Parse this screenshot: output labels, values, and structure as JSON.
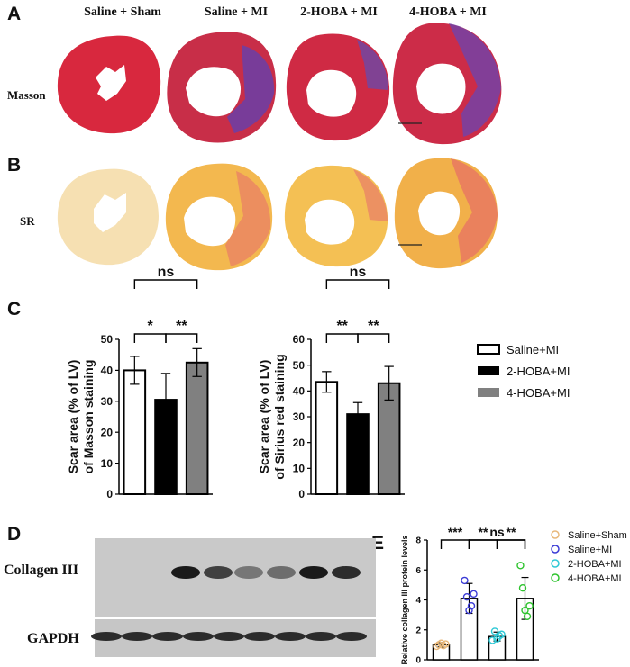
{
  "panels": {
    "A": "A",
    "B": "B",
    "C": "C",
    "D": "D",
    "E": "E"
  },
  "histology": {
    "columns": [
      "Saline + Sham",
      "Saline + MI",
      "2-HOBA + MI",
      "4-HOBA + MI"
    ],
    "row_masson": "Masson",
    "row_sr": "SR"
  },
  "chart_data": [
    {
      "type": "bar",
      "categories": [
        "Saline+MI",
        "2-HOBA+MI",
        "4-HOBA+MI"
      ],
      "values": [
        40,
        30.5,
        42.5
      ],
      "errors": [
        4.5,
        8.5,
        4.5
      ],
      "ylabel_lines": [
        "Scar area (% of LV)",
        "of Masson staining"
      ],
      "ylim": [
        0,
        50
      ],
      "yticks": [
        "0",
        "10",
        "20",
        "30",
        "40",
        "50"
      ],
      "colors": [
        "#ffffff",
        "#000000",
        "#808080"
      ],
      "significance": [
        {
          "label": "*",
          "pair": [
            0,
            1
          ]
        },
        {
          "label": "**",
          "pair": [
            1,
            2
          ]
        },
        {
          "label": "ns",
          "pair": [
            0,
            2
          ]
        }
      ]
    },
    {
      "type": "bar",
      "categories": [
        "Saline+MI",
        "2-HOBA+MI",
        "4-HOBA+MI"
      ],
      "values": [
        43.5,
        31,
        43
      ],
      "errors": [
        4,
        4.5,
        6.5
      ],
      "ylabel_lines": [
        "Scar area (% of LV)",
        "of Sirius red staining"
      ],
      "ylim": [
        0,
        60
      ],
      "yticks": [
        "0",
        "10",
        "20",
        "30",
        "40",
        "50",
        "60"
      ],
      "colors": [
        "#ffffff",
        "#000000",
        "#808080"
      ],
      "significance": [
        {
          "label": "**",
          "pair": [
            0,
            1
          ]
        },
        {
          "label": "**",
          "pair": [
            1,
            2
          ]
        },
        {
          "label": "ns",
          "pair": [
            0,
            2
          ]
        }
      ],
      "legend": [
        "Saline+MI",
        "2-HOBA+MI",
        "4-HOBA+MI"
      ]
    },
    {
      "type": "bar",
      "categories": [
        "Saline+Sham",
        "Saline+MI",
        "2-HOBA+MI",
        "4-HOBA+MI"
      ],
      "values": [
        1.0,
        4.1,
        1.55,
        4.1
      ],
      "errors": [
        0.15,
        1.0,
        0.3,
        1.4
      ],
      "points": [
        [
          0.9,
          1.0,
          1.1,
          0.95,
          1.05
        ],
        [
          5.3,
          4.2,
          3.3,
          3.6,
          4.4
        ],
        [
          1.3,
          1.9,
          1.4,
          1.6,
          1.7
        ],
        [
          6.3,
          4.8,
          3.3,
          2.9,
          3.6
        ]
      ],
      "point_colors": [
        "#e8b87a",
        "#3b3bd6",
        "#2fc9d6",
        "#2ec42e"
      ],
      "ylabel": "Relative collagen III protein levels",
      "ylim": [
        0,
        8
      ],
      "yticks": [
        "0",
        "2",
        "4",
        "6",
        "8"
      ],
      "significance": [
        {
          "label": "***",
          "pair": [
            0,
            1
          ]
        },
        {
          "label": "**",
          "pair": [
            1,
            2
          ]
        },
        {
          "label": "**",
          "pair": [
            2,
            3
          ]
        },
        {
          "label": "ns",
          "pair": [
            1,
            3
          ]
        }
      ],
      "legend": [
        "Saline+Sham",
        "Saline+MI",
        "2-HOBA+MI",
        "4-HOBA+MI"
      ]
    }
  ],
  "blot": {
    "labels": [
      "Collagen III",
      "GAPDH"
    ]
  }
}
